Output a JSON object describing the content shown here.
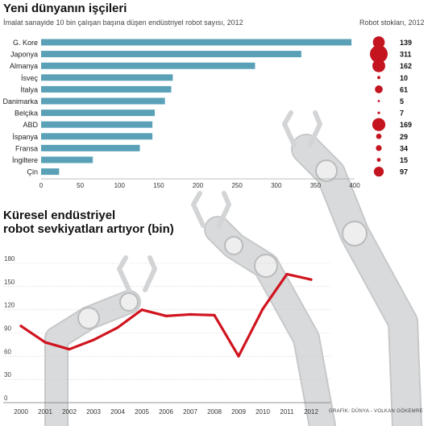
{
  "top": {
    "title": "Yeni dünyanın işçileri",
    "subtitle": "İmalat sanayide 10 bin çalışan başına düşen endüstriyel robot sayısı, 2012",
    "stock_header": "Robot stokları, 2012"
  },
  "bottom": {
    "title_line1": "Küresel endüstriyel",
    "title_line2": "robot sevkiyatları artıyor (bin)"
  },
  "credit": "GRAFİK: DÜNYA - VOLKAN GÖKEMRE",
  "colors": {
    "bar": "#5aa1b8",
    "stock_bubble": "#c3141f",
    "line": "#d0141f",
    "robot": "#d9dadb"
  },
  "chart_data": [
    {
      "type": "bar",
      "orientation": "horizontal",
      "title": "Yeni dünyanın işçileri",
      "subtitle": "İmalat sanayide 10 bin çalışan başına düşen endüstriyel robot sayısı, 2012",
      "categories": [
        "G. Kore",
        "Japonya",
        "Almanya",
        "İsveç",
        "İtalya",
        "Danimarka",
        "Belçika",
        "ABD",
        "İspanya",
        "Fransa",
        "İngiltere",
        "Çin"
      ],
      "values": [
        396,
        332,
        273,
        168,
        166,
        158,
        145,
        142,
        142,
        126,
        66,
        23
      ],
      "xlim": [
        0,
        400
      ],
      "xticks": [
        "0",
        "50",
        "100",
        "150",
        "200",
        "250",
        "300",
        "350",
        "400"
      ],
      "side_series": {
        "name": "Robot stokları, 2012",
        "labels": [
          "139",
          "311",
          "162",
          "10",
          "61",
          "5",
          "7",
          "169",
          "29",
          "34",
          "15",
          "97"
        ],
        "values": [
          139,
          311,
          162,
          10,
          61,
          5,
          7,
          169,
          29,
          34,
          15,
          97
        ]
      }
    },
    {
      "type": "line",
      "title": "Küresel endüstriyel robot sevkiyatları artıyor (bin)",
      "x": [
        "2000",
        "2001",
        "2002",
        "2003",
        "2004",
        "2005",
        "2006",
        "2007",
        "2008",
        "2009",
        "2010",
        "2011",
        "2012"
      ],
      "values": [
        99,
        78,
        69,
        81,
        97,
        120,
        112,
        114,
        113,
        60,
        121,
        166,
        159
      ],
      "ylim": [
        0,
        180
      ],
      "yticks": [
        "0",
        "30",
        "60",
        "90",
        "120",
        "150",
        "180"
      ]
    }
  ]
}
